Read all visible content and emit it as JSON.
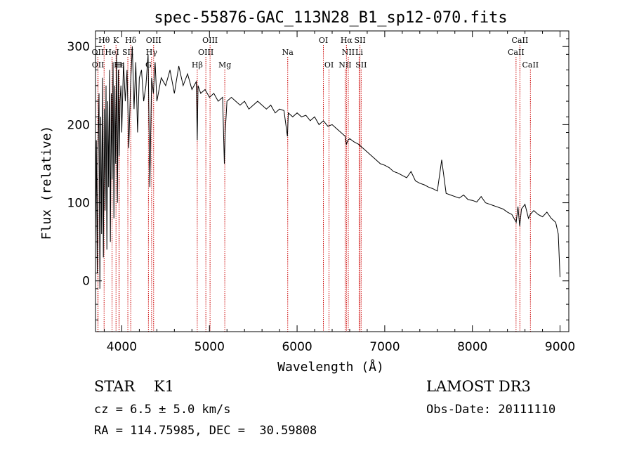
{
  "chart_data": {
    "type": "line",
    "title": "spec-55876-GAC_113N28_B1_sp12-070.fits",
    "xlabel": "Wavelength (Å)",
    "ylabel": "Flux (relative)",
    "xlim": [
      3700,
      9100
    ],
    "ylim": [
      -65,
      320
    ],
    "x_ticks": [
      4000,
      5000,
      6000,
      7000,
      8000,
      9000
    ],
    "y_ticks": [
      0,
      100,
      200,
      300
    ],
    "series": [
      {
        "name": "spectrum",
        "x": [
          3700,
          3710,
          3720,
          3730,
          3740,
          3750,
          3760,
          3770,
          3780,
          3790,
          3800,
          3810,
          3820,
          3830,
          3840,
          3850,
          3860,
          3870,
          3880,
          3890,
          3900,
          3910,
          3920,
          3930,
          3940,
          3950,
          3960,
          3970,
          3980,
          3990,
          4000,
          4020,
          4040,
          4060,
          4080,
          4100,
          4120,
          4140,
          4160,
          4180,
          4200,
          4225,
          4250,
          4275,
          4300,
          4320,
          4340,
          4360,
          4380,
          4400,
          4450,
          4500,
          4550,
          4600,
          4650,
          4700,
          4750,
          4800,
          4850,
          4861,
          4870,
          4900,
          4950,
          5000,
          5050,
          5100,
          5150,
          5170,
          5180,
          5200,
          5250,
          5300,
          5350,
          5400,
          5450,
          5500,
          5550,
          5600,
          5650,
          5700,
          5750,
          5800,
          5850,
          5890,
          5900,
          5950,
          6000,
          6050,
          6100,
          6150,
          6200,
          6250,
          6300,
          6350,
          6400,
          6450,
          6500,
          6550,
          6563,
          6580,
          6600,
          6650,
          6700,
          6750,
          6800,
          6850,
          6900,
          6950,
          7000,
          7050,
          7100,
          7150,
          7200,
          7250,
          7300,
          7350,
          7400,
          7450,
          7500,
          7550,
          7600,
          7650,
          7700,
          7750,
          7800,
          7850,
          7900,
          7950,
          8000,
          8050,
          8100,
          8150,
          8200,
          8250,
          8300,
          8350,
          8400,
          8450,
          8500,
          8520,
          8540,
          8560,
          8600,
          8640,
          8660,
          8700,
          8750,
          8800,
          8850,
          8900,
          8950,
          8980,
          9000
        ],
        "values": [
          50,
          180,
          10,
          170,
          240,
          -10,
          210,
          60,
          260,
          30,
          220,
          90,
          250,
          40,
          230,
          120,
          270,
          50,
          240,
          130,
          280,
          80,
          250,
          150,
          290,
          100,
          270,
          160,
          230,
          250,
          190,
          280,
          230,
          270,
          170,
          250,
          300,
          220,
          280,
          190,
          260,
          270,
          230,
          250,
          290,
          120,
          260,
          240,
          280,
          230,
          260,
          250,
          270,
          240,
          275,
          250,
          265,
          245,
          255,
          180,
          250,
          240,
          245,
          235,
          240,
          230,
          235,
          150,
          190,
          230,
          235,
          230,
          225,
          230,
          220,
          225,
          230,
          225,
          220,
          225,
          215,
          220,
          218,
          185,
          215,
          210,
          215,
          210,
          212,
          205,
          210,
          200,
          205,
          198,
          200,
          195,
          190,
          185,
          175,
          180,
          182,
          178,
          175,
          170,
          165,
          160,
          155,
          150,
          148,
          145,
          140,
          138,
          135,
          132,
          140,
          128,
          125,
          123,
          120,
          118,
          115,
          155,
          112,
          110,
          108,
          106,
          110,
          104,
          103,
          101,
          108,
          100,
          98,
          96,
          94,
          92,
          88,
          85,
          75,
          95,
          70,
          92,
          98,
          80,
          85,
          90,
          85,
          82,
          88,
          80,
          75,
          60,
          5
        ]
      }
    ],
    "lines": [
      {
        "label": "Hθ",
        "wl": 3798,
        "row": 0
      },
      {
        "label": "K",
        "wl": 3934,
        "row": 0
      },
      {
        "label": "Hδ",
        "wl": 4102,
        "row": 0
      },
      {
        "label": "OIII",
        "wl": 4363,
        "row": 0
      },
      {
        "label": "OIII",
        "wl": 5007,
        "row": 0
      },
      {
        "label": "OI",
        "wl": 6300,
        "row": 0
      },
      {
        "label": "Hα",
        "wl": 6563,
        "row": 0
      },
      {
        "label": "SII",
        "wl": 6717,
        "row": 0
      },
      {
        "label": "CaII",
        "wl": 8542,
        "row": 0
      },
      {
        "label": "OII",
        "wl": 3727,
        "row": 1
      },
      {
        "label": "HeI",
        "wl": 3889,
        "row": 1
      },
      {
        "label": "SII",
        "wl": 4069,
        "row": 1
      },
      {
        "label": "Hγ",
        "wl": 4340,
        "row": 1
      },
      {
        "label": "OIII",
        "wl": 4959,
        "row": 1
      },
      {
        "label": "Na",
        "wl": 5893,
        "row": 1
      },
      {
        "label": "NII",
        "wl": 6584,
        "row": 1
      },
      {
        "label": "Li",
        "wl": 6708,
        "row": 1
      },
      {
        "label": "CaII",
        "wl": 8498,
        "row": 1
      },
      {
        "label": "OII",
        "wl": 3729,
        "row": 2
      },
      {
        "label": "Hε",
        "wl": 3970,
        "row": 2
      },
      {
        "label": "H",
        "wl": 3968,
        "row": 2
      },
      {
        "label": "G",
        "wl": 4304,
        "row": 2
      },
      {
        "label": "Hβ",
        "wl": 4861,
        "row": 2
      },
      {
        "label": "Mg",
        "wl": 5175,
        "row": 2
      },
      {
        "label": "OI",
        "wl": 6364,
        "row": 2
      },
      {
        "label": "NII",
        "wl": 6548,
        "row": 2
      },
      {
        "label": "SII",
        "wl": 6731,
        "row": 2
      },
      {
        "label": "CaII",
        "wl": 8662,
        "row": 2
      }
    ],
    "colors": {
      "spectrum": "#000000",
      "line_marker": "#cc0000",
      "text": "#000000"
    }
  },
  "info": {
    "object_class": "STAR    K1",
    "survey": "LAMOST DR3",
    "cz": "cz = 6.5 ± 5.0 km/s",
    "obs_date": "Obs-Date: 20111110",
    "radec": "RA = 114.75985, DEC =  30.59808"
  }
}
